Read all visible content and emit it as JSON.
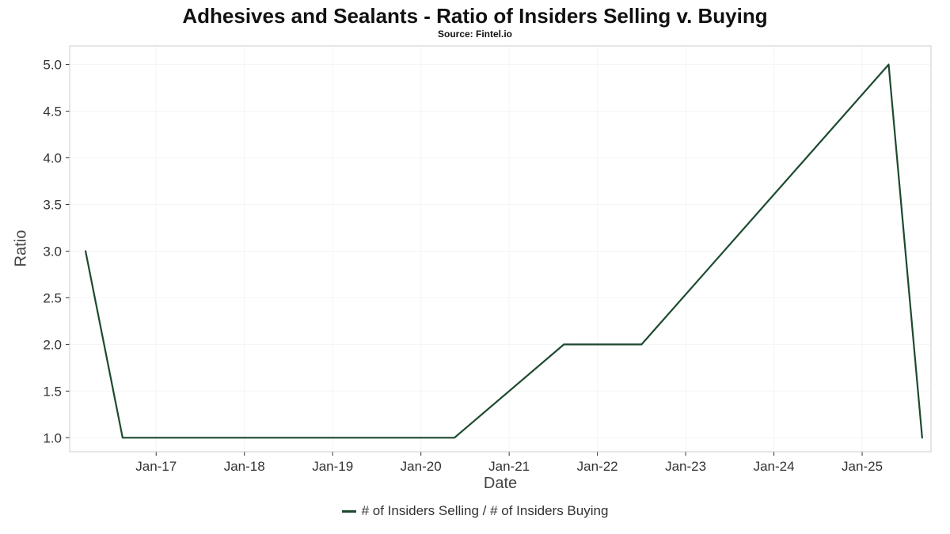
{
  "title": "Adhesives and Sealants - Ratio of Insiders Selling v. Buying",
  "subtitle": "Source: Fintel.io",
  "legend": {
    "label": "# of Insiders Selling / # of Insiders Buying"
  },
  "colors": {
    "line": "#1d4a2f",
    "tick_text": "#333333",
    "axis_label_text": "#444444",
    "plot_border": "#cccccc",
    "tick_mark": "#333333",
    "grid": "#f4f4f4",
    "title_text": "#111111"
  },
  "chart_data": {
    "type": "line",
    "title": "Adhesives and Sealants - Ratio of Insiders Selling v. Buying",
    "subtitle": "Source: Fintel.io",
    "xlabel": "Date",
    "ylabel": "Ratio",
    "legend_position": "bottom",
    "grid": true,
    "xlim": [
      2016.02,
      2025.78
    ],
    "ylim": [
      0.85,
      5.2
    ],
    "y_ticks": [
      1.0,
      1.5,
      2.0,
      2.5,
      3.0,
      3.5,
      4.0,
      4.5,
      5.0
    ],
    "x_ticks": [
      {
        "value": 2017,
        "label": "Jan-17"
      },
      {
        "value": 2018,
        "label": "Jan-18"
      },
      {
        "value": 2019,
        "label": "Jan-19"
      },
      {
        "value": 2020,
        "label": "Jan-20"
      },
      {
        "value": 2021,
        "label": "Jan-21"
      },
      {
        "value": 2022,
        "label": "Jan-22"
      },
      {
        "value": 2023,
        "label": "Jan-23"
      },
      {
        "value": 2024,
        "label": "Jan-24"
      },
      {
        "value": 2025,
        "label": "Jan-25"
      }
    ],
    "series": [
      {
        "name": "# of Insiders Selling / # of Insiders Buying",
        "color": "#1d4a2f",
        "points": [
          {
            "x": 2016.2,
            "y": 3.0
          },
          {
            "x": 2016.62,
            "y": 1.0
          },
          {
            "x": 2020.38,
            "y": 1.0
          },
          {
            "x": 2021.62,
            "y": 2.0
          },
          {
            "x": 2022.5,
            "y": 2.0
          },
          {
            "x": 2025.3,
            "y": 5.0
          },
          {
            "x": 2025.68,
            "y": 1.0
          }
        ]
      }
    ]
  }
}
